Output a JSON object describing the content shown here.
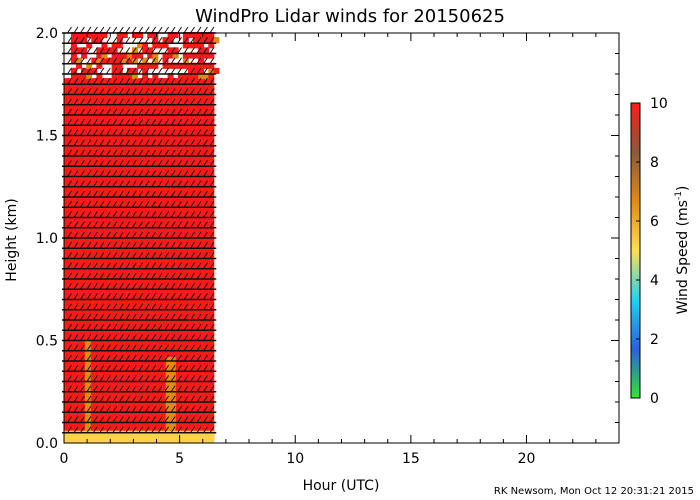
{
  "chart_data": {
    "type": "heatmap",
    "title": "WindPro Lidar winds for 20150625",
    "xlabel": "Hour (UTC)",
    "ylabel": "Height (km)",
    "xlim": [
      0,
      24
    ],
    "ylim": [
      0,
      2.0
    ],
    "xticks": [
      "0",
      "5",
      "10",
      "15",
      "20"
    ],
    "yticks": [
      "0.0",
      "0.5",
      "1.0",
      "1.5",
      "2.0"
    ],
    "data_extent_hours": [
      0,
      6.5
    ],
    "barb_height_spacing_km": 0.05,
    "colorbar": {
      "label_main": "Wind Speed (ms",
      "label_sup": "-1",
      "label_close": ")",
      "min": 0,
      "max": 10,
      "ticks": [
        "0",
        "2",
        "4",
        "6",
        "8",
        "10"
      ],
      "colors": [
        "#2ee82e",
        "#2b5fe0",
        "#1ed4f2",
        "#ffdf50",
        "#e08a10",
        "#8b5a3c",
        "#ff1a1a"
      ]
    },
    "footer": "RK Newsom, Mon Oct 12 20:31:21 2015"
  }
}
